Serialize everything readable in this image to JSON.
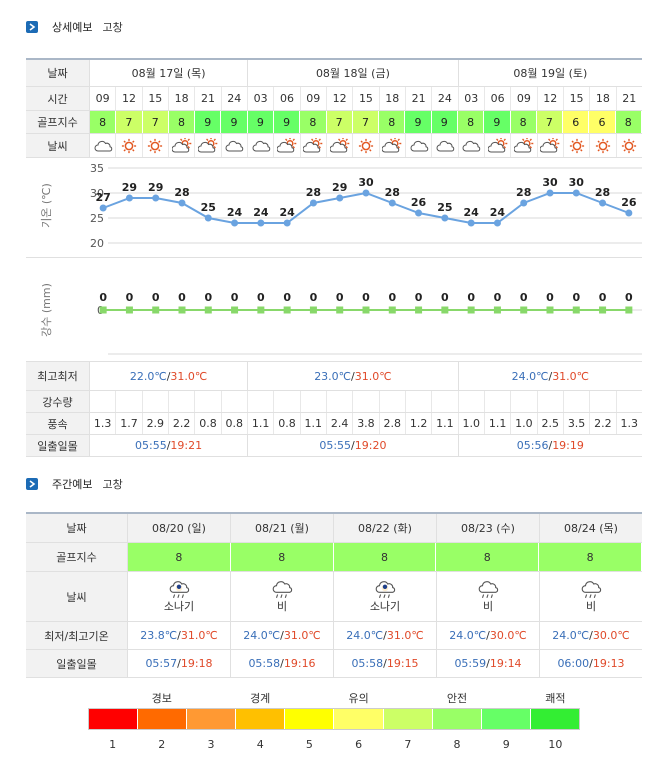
{
  "section1": {
    "title": "상세예보",
    "location": "고창"
  },
  "section2": {
    "title": "주간예보",
    "location": "고창"
  },
  "detail": {
    "labels": {
      "date": "날짜",
      "time": "시간",
      "golf": "골프지수",
      "weather": "날씨",
      "temp_axis": "기온 (℃)",
      "rain_axis": "강수 (mm)",
      "minmax": "최고최저",
      "rain": "강수량",
      "wind": "풍속",
      "sun": "일출일몰"
    },
    "days": [
      {
        "label": "08월 17일 (목)",
        "span": 6,
        "min": "22.0℃",
        "max": "31.0℃",
        "sunrise": "05:55",
        "sunset": "19:21"
      },
      {
        "label": "08월 18일 (금)",
        "span": 8,
        "min": "23.0℃",
        "max": "31.0℃",
        "sunrise": "05:55",
        "sunset": "19:20"
      },
      {
        "label": "08월 19일 (토)",
        "span": 7,
        "min": "24.0℃",
        "max": "31.0℃",
        "sunrise": "05:56",
        "sunset": "19:19"
      }
    ],
    "times": [
      "09",
      "12",
      "15",
      "18",
      "21",
      "24",
      "03",
      "06",
      "09",
      "12",
      "15",
      "18",
      "21",
      "24",
      "03",
      "06",
      "09",
      "12",
      "15",
      "18",
      "21"
    ],
    "golf": [
      8,
      7,
      7,
      8,
      9,
      9,
      9,
      9,
      8,
      7,
      7,
      8,
      9,
      9,
      8,
      9,
      8,
      7,
      6,
      6,
      8
    ],
    "weather_icons": [
      "cloud-icon",
      "sun-icon",
      "sun-icon",
      "partly-cloudy-icon",
      "partly-cloudy-icon",
      "cloud-icon",
      "cloud-icon",
      "partly-cloudy-icon",
      "partly-cloudy-icon",
      "partly-cloudy-icon",
      "sun-icon",
      "partly-cloudy-icon",
      "cloud-icon",
      "cloud-icon",
      "cloud-icon",
      "partly-cloudy-icon",
      "partly-cloudy-icon",
      "partly-cloudy-icon",
      "sun-icon",
      "sun-icon",
      "sun-icon"
    ],
    "wind": [
      "1.3",
      "1.7",
      "2.9",
      "2.2",
      "0.8",
      "0.8",
      "1.1",
      "0.8",
      "1.1",
      "2.4",
      "3.8",
      "2.8",
      "1.2",
      "1.1",
      "1.0",
      "1.1",
      "1.0",
      "2.5",
      "3.5",
      "2.2",
      "1.3"
    ]
  },
  "chart_data": [
    {
      "type": "line",
      "ylabel": "기온 (℃)",
      "ylim": [
        20,
        35
      ],
      "yticks": [
        20,
        25,
        30,
        35
      ],
      "x": [
        "09",
        "12",
        "15",
        "18",
        "21",
        "24",
        "03",
        "06",
        "09",
        "12",
        "15",
        "18",
        "21",
        "24",
        "03",
        "06",
        "09",
        "12",
        "15",
        "18",
        "21"
      ],
      "values": [
        27,
        29,
        29,
        28,
        25,
        24,
        24,
        24,
        28,
        29,
        30,
        28,
        26,
        25,
        24,
        24,
        28,
        30,
        30,
        28,
        26
      ]
    },
    {
      "type": "line",
      "ylabel": "강수 (mm)",
      "yticks": [
        0
      ],
      "x": [
        "09",
        "12",
        "15",
        "18",
        "21",
        "24",
        "03",
        "06",
        "09",
        "12",
        "15",
        "18",
        "21",
        "24",
        "03",
        "06",
        "09",
        "12",
        "15",
        "18",
        "21"
      ],
      "values": [
        0,
        0,
        0,
        0,
        0,
        0,
        0,
        0,
        0,
        0,
        0,
        0,
        0,
        0,
        0,
        0,
        0,
        0,
        0,
        0,
        0
      ]
    }
  ],
  "weekly": {
    "labels": {
      "date": "날짜",
      "golf": "골프지수",
      "weather": "날씨",
      "minmax": "최저/최고기온",
      "sun": "일출일몰"
    },
    "days": [
      {
        "date": "08/20 (일)",
        "golf": "8",
        "icon": "sun-shower-icon",
        "weather": "소나기",
        "min": "23.8℃",
        "max": "31.0℃",
        "sunrise": "05:57",
        "sunset": "19:18"
      },
      {
        "date": "08/21 (월)",
        "golf": "8",
        "icon": "rain-icon",
        "weather": "비",
        "min": "24.0℃",
        "max": "31.0℃",
        "sunrise": "05:58",
        "sunset": "19:16"
      },
      {
        "date": "08/22 (화)",
        "golf": "8",
        "icon": "sun-shower-icon",
        "weather": "소나기",
        "min": "24.0℃",
        "max": "31.0℃",
        "sunrise": "05:58",
        "sunset": "19:15"
      },
      {
        "date": "08/23 (수)",
        "golf": "8",
        "icon": "rain-icon",
        "weather": "비",
        "min": "24.0℃",
        "max": "30.0℃",
        "sunrise": "05:59",
        "sunset": "19:14"
      },
      {
        "date": "08/24 (목)",
        "golf": "8",
        "icon": "rain-icon",
        "weather": "비",
        "min": "24.0℃",
        "max": "30.0℃",
        "sunrise": "06:00",
        "sunset": "19:13"
      }
    ]
  },
  "legend": {
    "labels": [
      {
        "text": "경보",
        "at": 1.5
      },
      {
        "text": "경계",
        "at": 3.5
      },
      {
        "text": "유의",
        "at": 5.5
      },
      {
        "text": "안전",
        "at": 7.5
      },
      {
        "text": "쾌적",
        "at": 9.5
      }
    ],
    "colors": [
      "#ff0000",
      "#ff6a00",
      "#ff9933",
      "#ffc000",
      "#ffff00",
      "#ffff66",
      "#ccff66",
      "#99ff66",
      "#66ff66",
      "#33ee33"
    ],
    "numbers": [
      "1",
      "2",
      "3",
      "4",
      "5",
      "6",
      "7",
      "8",
      "9",
      "10"
    ]
  },
  "golf_colors": {
    "6": "#ffff66",
    "7": "#ccff66",
    "8": "#99ff66",
    "9": "#66ff66"
  },
  "colors": {
    "accent": "#1c6bb5",
    "line": "#6aa3e0",
    "rain_line": "#88d86a",
    "min": "#3a6fb8",
    "max": "#e04a2a"
  }
}
